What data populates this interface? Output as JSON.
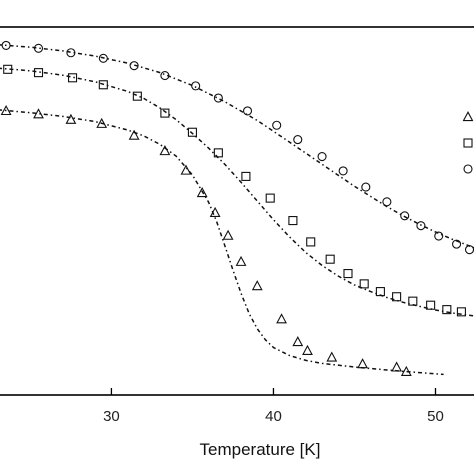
{
  "chart_data": {
    "type": "scatter",
    "xlabel": "Temperature [K]",
    "ylabel": "",
    "xlim": [
      23,
      52.5
    ],
    "ylim": [
      0.0,
      1.0
    ],
    "grid": false,
    "x_ticks": [
      30,
      40,
      50
    ],
    "x_tick_labels": [
      "30",
      "40",
      "50"
    ],
    "legend": {
      "placement": "right",
      "markers": [
        "triangle",
        "square",
        "circle"
      ]
    },
    "series": [
      {
        "marker": "circle",
        "points": [
          [
            23.5,
            0.95
          ],
          [
            25.5,
            0.942
          ],
          [
            27.5,
            0.93
          ],
          [
            29.5,
            0.915
          ],
          [
            31.4,
            0.895
          ],
          [
            33.3,
            0.868
          ],
          [
            35.2,
            0.84
          ],
          [
            36.6,
            0.807
          ],
          [
            38.4,
            0.772
          ],
          [
            40.2,
            0.733
          ],
          [
            41.5,
            0.694
          ],
          [
            43.0,
            0.648
          ],
          [
            44.3,
            0.609
          ],
          [
            45.7,
            0.565
          ],
          [
            47.0,
            0.525
          ],
          [
            48.1,
            0.487
          ],
          [
            49.1,
            0.46
          ],
          [
            50.2,
            0.432
          ],
          [
            51.3,
            0.41
          ],
          [
            52.1,
            0.395
          ]
        ],
        "fit": [
          [
            23,
            0.952
          ],
          [
            25,
            0.945
          ],
          [
            27,
            0.935
          ],
          [
            29,
            0.921
          ],
          [
            31,
            0.902
          ],
          [
            33,
            0.876
          ],
          [
            35,
            0.841
          ],
          [
            37,
            0.797
          ],
          [
            39,
            0.746
          ],
          [
            41,
            0.687
          ],
          [
            43,
            0.627
          ],
          [
            45,
            0.567
          ],
          [
            47,
            0.512
          ],
          [
            48,
            0.487
          ],
          [
            49,
            0.464
          ],
          [
            50,
            0.443
          ],
          [
            51,
            0.424
          ],
          [
            52.5,
            0.398
          ]
        ]
      },
      {
        "marker": "square",
        "points": [
          [
            23.6,
            0.885
          ],
          [
            25.5,
            0.876
          ],
          [
            27.6,
            0.862
          ],
          [
            29.5,
            0.843
          ],
          [
            31.6,
            0.812
          ],
          [
            33.3,
            0.766
          ],
          [
            35.0,
            0.714
          ],
          [
            36.6,
            0.658
          ],
          [
            38.3,
            0.594
          ],
          [
            39.8,
            0.535
          ],
          [
            41.2,
            0.474
          ],
          [
            42.3,
            0.416
          ],
          [
            43.5,
            0.369
          ],
          [
            44.6,
            0.33
          ],
          [
            45.6,
            0.302
          ],
          [
            46.6,
            0.281
          ],
          [
            47.6,
            0.267
          ],
          [
            48.6,
            0.255
          ],
          [
            49.7,
            0.244
          ],
          [
            50.7,
            0.232
          ],
          [
            51.6,
            0.226
          ]
        ],
        "fit": [
          [
            23,
            0.888
          ],
          [
            25,
            0.881
          ],
          [
            27,
            0.869
          ],
          [
            29,
            0.851
          ],
          [
            31,
            0.825
          ],
          [
            32,
            0.806
          ],
          [
            33,
            0.78
          ],
          [
            34,
            0.748
          ],
          [
            35,
            0.711
          ],
          [
            36,
            0.671
          ],
          [
            37,
            0.627
          ],
          [
            38,
            0.578
          ],
          [
            39,
            0.527
          ],
          [
            40,
            0.476
          ],
          [
            41,
            0.429
          ],
          [
            42,
            0.387
          ],
          [
            43,
            0.352
          ],
          [
            44,
            0.323
          ],
          [
            45,
            0.299
          ],
          [
            46,
            0.281
          ],
          [
            47,
            0.265
          ],
          [
            48,
            0.252
          ],
          [
            49,
            0.241
          ],
          [
            50,
            0.231
          ],
          [
            51,
            0.223
          ],
          [
            52.5,
            0.214
          ]
        ]
      },
      {
        "marker": "triangle",
        "points": [
          [
            23.5,
            0.772
          ],
          [
            25.5,
            0.763
          ],
          [
            27.5,
            0.748
          ],
          [
            29.4,
            0.737
          ],
          [
            31.4,
            0.705
          ],
          [
            33.3,
            0.663
          ],
          [
            34.6,
            0.61
          ],
          [
            35.6,
            0.549
          ],
          [
            36.4,
            0.495
          ],
          [
            37.2,
            0.433
          ],
          [
            38.0,
            0.362
          ],
          [
            39.0,
            0.296
          ],
          [
            40.5,
            0.206
          ],
          [
            41.5,
            0.144
          ],
          [
            42.1,
            0.12
          ],
          [
            43.6,
            0.102
          ],
          [
            45.5,
            0.084
          ],
          [
            47.6,
            0.075
          ],
          [
            48.2,
            0.063
          ]
        ],
        "fit": [
          [
            23,
            0.775
          ],
          [
            25,
            0.767
          ],
          [
            27,
            0.757
          ],
          [
            29,
            0.743
          ],
          [
            31,
            0.72
          ],
          [
            32,
            0.704
          ],
          [
            33,
            0.681
          ],
          [
            34,
            0.649
          ],
          [
            35,
            0.598
          ],
          [
            36,
            0.524
          ],
          [
            36.5,
            0.471
          ],
          [
            37,
            0.406
          ],
          [
            37.5,
            0.34
          ],
          [
            38,
            0.276
          ],
          [
            38.5,
            0.221
          ],
          [
            39,
            0.18
          ],
          [
            39.5,
            0.15
          ],
          [
            40,
            0.129
          ],
          [
            41,
            0.107
          ],
          [
            42,
            0.094
          ],
          [
            43,
            0.086
          ],
          [
            45,
            0.076
          ],
          [
            47,
            0.068
          ],
          [
            49,
            0.061
          ],
          [
            50.5,
            0.056
          ]
        ]
      }
    ]
  }
}
